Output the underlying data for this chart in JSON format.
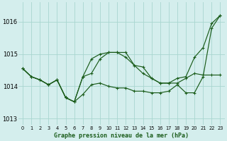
{
  "title": "Graphe pression niveau de la mer (hPa)",
  "background_color": "#d4eeed",
  "grid_color": "#a8d5d0",
  "line_color": "#1a5c1a",
  "x_labels": [
    "0",
    "1",
    "2",
    "3",
    "4",
    "5",
    "6",
    "7",
    "8",
    "9",
    "10",
    "11",
    "12",
    "13",
    "14",
    "15",
    "16",
    "17",
    "18",
    "19",
    "20",
    "21",
    "22",
    "23"
  ],
  "ylim": [
    1012.8,
    1016.6
  ],
  "yticks": [
    1013,
    1014,
    1015,
    1016
  ],
  "line1": [
    1014.55,
    1014.3,
    1014.2,
    1014.05,
    1014.2,
    1013.65,
    1013.52,
    1013.75,
    1014.05,
    1014.1,
    1014.0,
    1013.95,
    1013.95,
    1013.85,
    1013.85,
    1013.8,
    1013.8,
    1013.85,
    1014.05,
    1013.8,
    1013.8,
    1014.3,
    1015.8,
    1016.2
  ],
  "line2": [
    1014.55,
    1014.3,
    1014.2,
    1014.05,
    1014.2,
    1013.65,
    1013.52,
    1014.3,
    1014.85,
    1015.0,
    1015.05,
    1015.05,
    1015.05,
    1014.65,
    1014.6,
    1014.25,
    1014.1,
    1014.1,
    1014.25,
    1014.3,
    1014.9,
    1015.2,
    1015.95,
    1016.2
  ],
  "line3": [
    1014.55,
    1014.3,
    1014.2,
    1014.05,
    1014.2,
    1013.65,
    1013.52,
    1014.3,
    1014.4,
    1014.85,
    1015.05,
    1015.05,
    1014.9,
    1014.65,
    1014.4,
    1014.25,
    1014.1,
    1014.1,
    1014.1,
    1014.25,
    1014.4,
    1014.35,
    1014.35,
    1014.35
  ]
}
